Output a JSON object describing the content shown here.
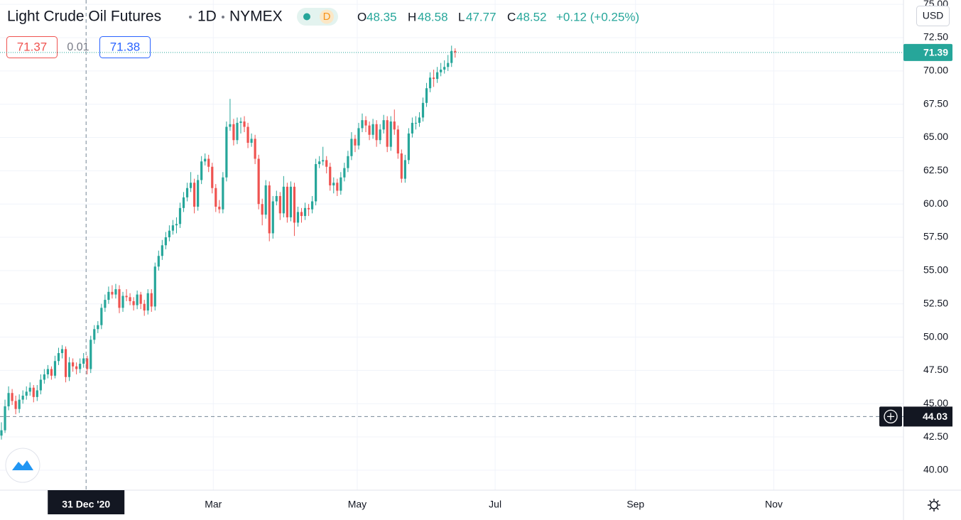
{
  "chart_data": {
    "type": "candlestick",
    "title": "Light Crude Oil Futures",
    "interval": "1D",
    "exchange": "NYMEX",
    "badge": "D",
    "ohlc_labels": {
      "open_label": "O",
      "open": 48.35,
      "high_label": "H",
      "high": 48.58,
      "low_label": "L",
      "low": 47.77,
      "close_label": "C",
      "close": 48.52,
      "change": "+0.12 (+0.25%)"
    },
    "sell_price": "71.37",
    "spread": "0.01",
    "buy_price": "71.38",
    "currency": "USD",
    "last_price": {
      "value": 71.39,
      "label": "71.39"
    },
    "crosshair": {
      "x": 23.7,
      "x_label": "31 Dec '20",
      "y": 44.03,
      "y_label": "44.03"
    },
    "up_color": "#26a69a",
    "down_color": "#ef5350",
    "grid": true,
    "xlim": [
      -0.4,
      252.5
    ],
    "xticks": [
      {
        "value": 59.3,
        "label": "Mar"
      },
      {
        "value": 99.6,
        "label": "May"
      },
      {
        "value": 138.2,
        "label": "Jul"
      },
      {
        "value": 177.5,
        "label": "Sep"
      },
      {
        "value": 216.2,
        "label": "Nov"
      }
    ],
    "ylim": [
      38.5,
      75.33
    ],
    "yticks": [
      {
        "value": 40,
        "label": "40.00"
      },
      {
        "value": 42.5,
        "label": "42.50"
      },
      {
        "value": 45,
        "label": "45.00"
      },
      {
        "value": 47.5,
        "label": "47.50"
      },
      {
        "value": 50,
        "label": "50.00"
      },
      {
        "value": 52.5,
        "label": "52.50"
      },
      {
        "value": 55,
        "label": "55.00"
      },
      {
        "value": 57.5,
        "label": "57.50"
      },
      {
        "value": 60,
        "label": "60.00"
      },
      {
        "value": 62.5,
        "label": "62.50"
      },
      {
        "value": 65,
        "label": "65.00"
      },
      {
        "value": 67.5,
        "label": "67.50"
      },
      {
        "value": 70,
        "label": "70.00"
      },
      {
        "value": 72.5,
        "label": "72.50"
      },
      {
        "value": 75,
        "label": "75.00"
      }
    ],
    "candles": [
      [
        42.6,
        43.6,
        42.3,
        43.0
      ],
      [
        43.0,
        45.3,
        42.8,
        44.8
      ],
      [
        44.8,
        46.3,
        44.5,
        45.8
      ],
      [
        45.8,
        46.1,
        44.9,
        45.2
      ],
      [
        45.2,
        45.6,
        44.2,
        44.6
      ],
      [
        44.6,
        45.7,
        44.3,
        45.3
      ],
      [
        45.3,
        46.0,
        45.0,
        45.6
      ],
      [
        45.6,
        46.3,
        45.3,
        45.9
      ],
      [
        45.9,
        46.6,
        45.6,
        46.2
      ],
      [
        46.2,
        46.4,
        45.1,
        45.5
      ],
      [
        45.5,
        46.4,
        45.2,
        46.0
      ],
      [
        46.0,
        47.2,
        45.7,
        46.8
      ],
      [
        46.8,
        47.6,
        46.5,
        47.2
      ],
      [
        47.2,
        47.9,
        46.9,
        47.6
      ],
      [
        47.6,
        47.8,
        46.8,
        47.1
      ],
      [
        47.1,
        48.6,
        46.9,
        48.2
      ],
      [
        48.2,
        49.2,
        47.9,
        48.8
      ],
      [
        48.8,
        49.4,
        48.4,
        49.1
      ],
      [
        49.1,
        49.3,
        46.6,
        47.0
      ],
      [
        47.0,
        48.5,
        46.7,
        48.1
      ],
      [
        48.1,
        48.4,
        47.4,
        47.8
      ],
      [
        47.8,
        48.1,
        47.2,
        47.6
      ],
      [
        47.6,
        48.4,
        47.3,
        48.0
      ],
      [
        48.0,
        48.8,
        47.7,
        48.4
      ],
      [
        48.4,
        48.6,
        47.2,
        47.6
      ],
      [
        47.6,
        50.1,
        47.3,
        49.8
      ],
      [
        49.8,
        50.9,
        49.5,
        50.6
      ],
      [
        50.6,
        51.2,
        50.3,
        50.9
      ],
      [
        50.9,
        52.5,
        50.6,
        52.2
      ],
      [
        52.2,
        53.2,
        51.9,
        52.8
      ],
      [
        52.8,
        53.8,
        52.5,
        53.4
      ],
      [
        53.4,
        53.9,
        52.9,
        53.2
      ],
      [
        53.2,
        54.0,
        52.9,
        53.6
      ],
      [
        53.6,
        53.9,
        51.8,
        52.2
      ],
      [
        52.2,
        53.4,
        51.9,
        53.1
      ],
      [
        53.1,
        53.6,
        52.7,
        53.0
      ],
      [
        53.0,
        53.3,
        52.4,
        52.7
      ],
      [
        52.7,
        53.0,
        52.0,
        52.4
      ],
      [
        52.4,
        53.5,
        52.1,
        53.2
      ],
      [
        53.2,
        53.4,
        52.1,
        52.5
      ],
      [
        52.5,
        52.8,
        51.6,
        52.0
      ],
      [
        52.0,
        53.6,
        51.7,
        53.3
      ],
      [
        53.3,
        53.6,
        51.9,
        52.3
      ],
      [
        52.3,
        55.6,
        52.0,
        55.3
      ],
      [
        55.3,
        56.5,
        55.0,
        56.1
      ],
      [
        56.1,
        57.3,
        55.8,
        56.9
      ],
      [
        56.9,
        57.9,
        56.6,
        57.5
      ],
      [
        57.5,
        58.4,
        57.2,
        58.0
      ],
      [
        58.0,
        58.8,
        57.7,
        58.4
      ],
      [
        58.4,
        59.0,
        57.8,
        58.5
      ],
      [
        58.5,
        60.1,
        58.2,
        59.7
      ],
      [
        59.7,
        60.9,
        59.4,
        60.5
      ],
      [
        60.5,
        61.6,
        60.2,
        61.2
      ],
      [
        61.2,
        62.4,
        60.9,
        61.6
      ],
      [
        61.6,
        61.9,
        59.3,
        59.8
      ],
      [
        59.8,
        62.2,
        59.5,
        61.8
      ],
      [
        61.8,
        63.6,
        61.5,
        63.2
      ],
      [
        63.2,
        63.8,
        62.9,
        63.4
      ],
      [
        63.4,
        63.7,
        62.4,
        62.8
      ],
      [
        62.8,
        63.1,
        60.8,
        61.2
      ],
      [
        61.2,
        61.5,
        59.4,
        59.8
      ],
      [
        59.8,
        60.3,
        59.3,
        59.6
      ],
      [
        59.6,
        62.4,
        59.3,
        62.0
      ],
      [
        62.0,
        66.2,
        61.7,
        65.8
      ],
      [
        65.8,
        67.9,
        65.5,
        66.0
      ],
      [
        66.0,
        66.4,
        64.4,
        64.8
      ],
      [
        64.8,
        66.5,
        64.5,
        66.1
      ],
      [
        66.1,
        66.5,
        65.3,
        66.2
      ],
      [
        66.2,
        66.6,
        65.4,
        65.8
      ],
      [
        65.8,
        66.1,
        64.2,
        64.6
      ],
      [
        64.6,
        65.3,
        64.3,
        64.9
      ],
      [
        64.9,
        65.2,
        63.0,
        63.4
      ],
      [
        63.4,
        63.7,
        59.6,
        60.0
      ],
      [
        60.0,
        60.4,
        58.4,
        59.2
      ],
      [
        59.2,
        61.8,
        58.9,
        61.4
      ],
      [
        61.4,
        61.7,
        57.2,
        57.8
      ],
      [
        57.8,
        60.6,
        57.4,
        60.2
      ],
      [
        60.2,
        61.0,
        59.9,
        60.6
      ],
      [
        60.6,
        60.9,
        58.8,
        59.3
      ],
      [
        59.3,
        62.1,
        59.0,
        61.3
      ],
      [
        61.3,
        61.6,
        58.6,
        59.0
      ],
      [
        59.0,
        61.7,
        58.7,
        61.3
      ],
      [
        61.3,
        61.6,
        57.6,
        58.6
      ],
      [
        58.6,
        59.8,
        58.3,
        59.4
      ],
      [
        59.4,
        59.7,
        58.6,
        59.1
      ],
      [
        59.1,
        60.1,
        58.8,
        59.7
      ],
      [
        59.7,
        60.0,
        59.1,
        59.6
      ],
      [
        59.6,
        60.6,
        59.3,
        60.2
      ],
      [
        60.2,
        63.4,
        59.9,
        63.0
      ],
      [
        63.0,
        63.6,
        62.7,
        63.2
      ],
      [
        63.2,
        64.3,
        62.9,
        63.3
      ],
      [
        63.3,
        63.6,
        62.3,
        62.8
      ],
      [
        62.8,
        63.1,
        61.0,
        61.4
      ],
      [
        61.4,
        62.0,
        60.8,
        61.6
      ],
      [
        61.6,
        61.9,
        60.6,
        61.0
      ],
      [
        61.0,
        62.4,
        60.7,
        62.0
      ],
      [
        62.0,
        63.1,
        61.7,
        62.7
      ],
      [
        62.7,
        64.0,
        62.4,
        63.6
      ],
      [
        63.6,
        65.4,
        63.3,
        64.9
      ],
      [
        64.9,
        65.2,
        63.9,
        64.4
      ],
      [
        64.4,
        66.1,
        64.1,
        65.7
      ],
      [
        65.7,
        66.8,
        65.4,
        66.3
      ],
      [
        66.3,
        66.6,
        65.4,
        65.9
      ],
      [
        65.9,
        66.2,
        64.8,
        65.2
      ],
      [
        65.2,
        66.4,
        64.9,
        66.0
      ],
      [
        66.0,
        66.3,
        64.3,
        64.8
      ],
      [
        64.8,
        66.0,
        64.5,
        65.6
      ],
      [
        65.6,
        66.7,
        65.3,
        66.3
      ],
      [
        66.3,
        66.6,
        63.9,
        64.3
      ],
      [
        64.3,
        66.6,
        64.0,
        66.2
      ],
      [
        66.2,
        67.1,
        65.2,
        65.6
      ],
      [
        65.6,
        65.9,
        63.4,
        63.8
      ],
      [
        63.8,
        64.1,
        61.6,
        61.9
      ],
      [
        61.9,
        63.7,
        61.6,
        63.3
      ],
      [
        63.3,
        65.7,
        63.0,
        65.3
      ],
      [
        65.3,
        66.5,
        65.0,
        66.1
      ],
      [
        66.1,
        66.6,
        65.6,
        66.1
      ],
      [
        66.1,
        66.9,
        65.8,
        66.5
      ],
      [
        66.5,
        68.0,
        66.2,
        67.6
      ],
      [
        67.6,
        69.1,
        67.3,
        68.7
      ],
      [
        68.7,
        69.9,
        68.4,
        69.5
      ],
      [
        69.5,
        70.1,
        68.8,
        69.4
      ],
      [
        69.4,
        70.3,
        69.1,
        69.9
      ],
      [
        69.9,
        70.6,
        69.6,
        70.1
      ],
      [
        70.1,
        70.8,
        69.8,
        70.3
      ],
      [
        70.3,
        71.2,
        70.0,
        70.6
      ],
      [
        70.6,
        71.9,
        70.3,
        71.5
      ],
      [
        71.5,
        71.7,
        71.0,
        71.4
      ]
    ]
  }
}
